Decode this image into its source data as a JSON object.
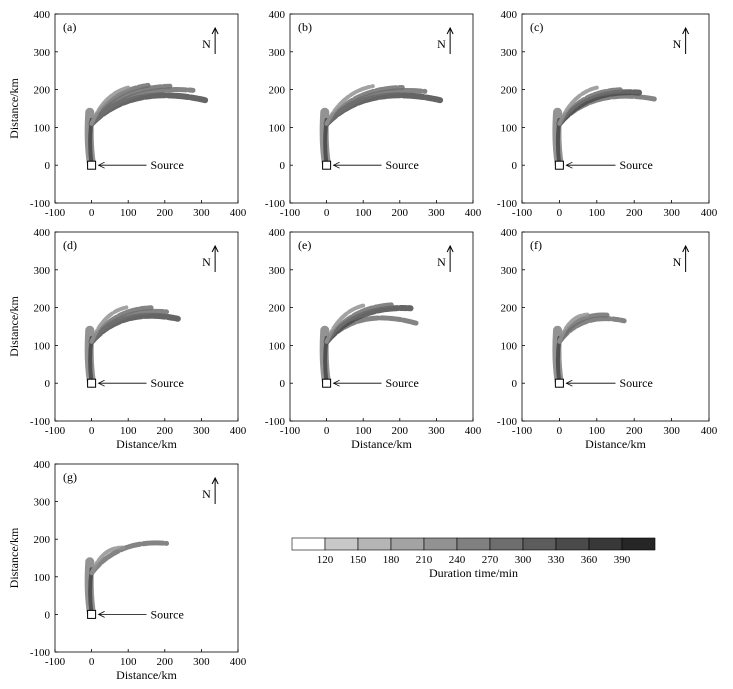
{
  "chart_data": [
    {
      "type": "heatmap",
      "panel_label": "(a)",
      "xlabel": "",
      "ylabel": "Distance/km",
      "xlim": [
        -100,
        400
      ],
      "ylim": [
        -100,
        400
      ],
      "xticks": [
        "-100",
        "0",
        "100",
        "200",
        "300",
        "400"
      ],
      "yticks": [
        "-100",
        "0",
        "100",
        "200",
        "300",
        "400"
      ],
      "north_label": "N",
      "source_label": "Source",
      "source_point": [
        0,
        0
      ],
      "plume_streaks": [
        {
          "angle_deg": 20,
          "reach_km": 330,
          "intensity": 3
        },
        {
          "angle_deg": 30,
          "reach_km": 320,
          "intensity": 2
        },
        {
          "angle_deg": 40,
          "reach_km": 280,
          "intensity": 2
        },
        {
          "angle_deg": 50,
          "reach_km": 240,
          "intensity": 2
        },
        {
          "angle_deg": 60,
          "reach_km": 200,
          "intensity": 1
        }
      ]
    },
    {
      "type": "heatmap",
      "panel_label": "(b)",
      "xlabel": "",
      "ylabel": "",
      "xlim": [
        -100,
        400
      ],
      "ylim": [
        -100,
        400
      ],
      "xticks": [
        "-100",
        "0",
        "100",
        "200",
        "300",
        "400"
      ],
      "yticks": [
        "-100",
        "0",
        "100",
        "200",
        "300",
        "400"
      ],
      "north_label": "N",
      "source_label": "Source",
      "source_point": [
        0,
        0
      ],
      "plume_streaks": [
        {
          "angle_deg": 20,
          "reach_km": 330,
          "intensity": 3
        },
        {
          "angle_deg": 30,
          "reach_km": 310,
          "intensity": 2
        },
        {
          "angle_deg": 40,
          "reach_km": 270,
          "intensity": 2
        },
        {
          "angle_deg": 55,
          "reach_km": 220,
          "intensity": 1
        }
      ]
    },
    {
      "type": "heatmap",
      "panel_label": "(c)",
      "xlabel": "",
      "ylabel": "",
      "xlim": [
        -100,
        400
      ],
      "ylim": [
        -100,
        400
      ],
      "xticks": [
        "-100",
        "0",
        "100",
        "200",
        "300",
        "400"
      ],
      "yticks": [
        "-100",
        "0",
        "100",
        "200",
        "300",
        "400"
      ],
      "north_label": "N",
      "source_label": "Source",
      "source_point": [
        0,
        0
      ],
      "plume_streaks": [
        {
          "angle_deg": 25,
          "reach_km": 280,
          "intensity": 2
        },
        {
          "angle_deg": 35,
          "reach_km": 260,
          "intensity": 3
        },
        {
          "angle_deg": 45,
          "reach_km": 230,
          "intensity": 2
        },
        {
          "angle_deg": 60,
          "reach_km": 200,
          "intensity": 1
        }
      ]
    },
    {
      "type": "heatmap",
      "panel_label": "(d)",
      "xlabel": "Distance/km",
      "ylabel": "Distance/km",
      "xlim": [
        -100,
        400
      ],
      "ylim": [
        -100,
        400
      ],
      "xticks": [
        "-100",
        "0",
        "100",
        "200",
        "300",
        "400"
      ],
      "yticks": [
        "-100",
        "0",
        "100",
        "200",
        "300",
        "400"
      ],
      "north_label": "N",
      "source_label": "Source",
      "source_point": [
        0,
        0
      ],
      "plume_streaks": [
        {
          "angle_deg": 25,
          "reach_km": 260,
          "intensity": 3
        },
        {
          "angle_deg": 35,
          "reach_km": 250,
          "intensity": 2
        },
        {
          "angle_deg": 45,
          "reach_km": 230,
          "intensity": 2
        },
        {
          "angle_deg": 60,
          "reach_km": 190,
          "intensity": 1
        }
      ]
    },
    {
      "type": "heatmap",
      "panel_label": "(e)",
      "xlabel": "Distance/km",
      "ylabel": "",
      "xlim": [
        -100,
        400
      ],
      "ylim": [
        -100,
        400
      ],
      "xticks": [
        "-100",
        "0",
        "100",
        "200",
        "300",
        "400"
      ],
      "yticks": [
        "-100",
        "0",
        "100",
        "200",
        "300",
        "400"
      ],
      "north_label": "N",
      "source_label": "Source",
      "source_point": [
        0,
        0
      ],
      "plume_streaks": [
        {
          "angle_deg": 20,
          "reach_km": 260,
          "intensity": 2
        },
        {
          "angle_deg": 35,
          "reach_km": 280,
          "intensity": 3
        },
        {
          "angle_deg": 45,
          "reach_km": 250,
          "intensity": 2
        },
        {
          "angle_deg": 60,
          "reach_km": 200,
          "intensity": 1
        }
      ]
    },
    {
      "type": "heatmap",
      "panel_label": "(f)",
      "xlabel": "Distance/km",
      "ylabel": "",
      "xlim": [
        -100,
        400
      ],
      "ylim": [
        -100,
        400
      ],
      "xticks": [
        "-100",
        "0",
        "100",
        "200",
        "300",
        "400"
      ],
      "yticks": [
        "-100",
        "0",
        "100",
        "200",
        "300",
        "400"
      ],
      "north_label": "N",
      "source_label": "Source",
      "source_point": [
        0,
        0
      ],
      "plume_streaks": [
        {
          "angle_deg": 30,
          "reach_km": 200,
          "intensity": 2
        },
        {
          "angle_deg": 45,
          "reach_km": 180,
          "intensity": 2
        },
        {
          "angle_deg": 60,
          "reach_km": 150,
          "intensity": 1
        }
      ]
    },
    {
      "type": "heatmap",
      "panel_label": "(g)",
      "xlabel": "Distance/km",
      "ylabel": "Distance/km",
      "xlim": [
        -100,
        400
      ],
      "ylim": [
        -100,
        400
      ],
      "xticks": [
        "-100",
        "0",
        "100",
        "200",
        "300",
        "400"
      ],
      "yticks": [
        "-100",
        "0",
        "100",
        "200",
        "300",
        "400"
      ],
      "north_label": "N",
      "source_label": "Source",
      "source_point": [
        0,
        0
      ],
      "plume_streaks": [
        {
          "angle_deg": 35,
          "reach_km": 250,
          "intensity": 2
        },
        {
          "angle_deg": 55,
          "reach_km": 150,
          "intensity": 1
        }
      ]
    }
  ],
  "colorbar": {
    "label": "Duration time/min",
    "ticks": [
      "120",
      "150",
      "180",
      "210",
      "240",
      "270",
      "300",
      "330",
      "360",
      "390"
    ],
    "colors": [
      "#ffffff",
      "#c8c8c8",
      "#b5b5b5",
      "#a3a3a3",
      "#929292",
      "#808080",
      "#6e6e6e",
      "#5c5c5c",
      "#4a4a4a",
      "#383838",
      "#262626"
    ]
  }
}
